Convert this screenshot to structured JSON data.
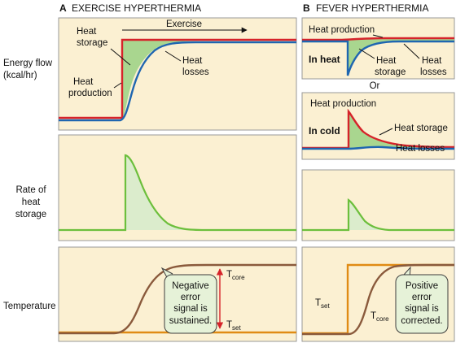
{
  "panel_a": {
    "letter": "A",
    "title": "EXERCISE HYPERTHERMIA"
  },
  "panel_b": {
    "letter": "B",
    "title": "FEVER HYPERTHERMIA"
  },
  "row_labels": {
    "energy_flow_line1": "Energy flow",
    "energy_flow_line2": "(kcal/hr)",
    "rate_line1": "Rate of",
    "rate_line2": "heat",
    "rate_line3": "storage",
    "temperature": "Temperature"
  },
  "a_energy": {
    "exercise": "Exercise",
    "heat_storage_1": "Heat",
    "heat_storage_2": "storage",
    "heat_losses_1": "Heat",
    "heat_losses_2": "losses",
    "heat_production_1": "Heat",
    "heat_production_2": "production"
  },
  "a_temp": {
    "t_core_main": "T",
    "t_core_sub": "core",
    "t_set_main": "T",
    "t_set_sub": "set",
    "callout_1": "Negative",
    "callout_2": "error",
    "callout_3": "signal is",
    "callout_4": "sustained."
  },
  "b_heat": {
    "heat_production": "Heat production",
    "condition": "In heat",
    "heat_storage_1": "Heat",
    "heat_storage_2": "storage",
    "heat_losses_1": "Heat",
    "heat_losses_2": "losses"
  },
  "b_or": "Or",
  "b_cold": {
    "heat_production": "Heat production",
    "condition": "In cold",
    "heat_storage": "Heat storage",
    "heat_losses": "Heat losses"
  },
  "b_temp": {
    "t_set_main": "T",
    "t_set_sub": "set",
    "t_core_main": "T",
    "t_core_sub": "core",
    "callout_1": "Positive",
    "callout_2": "error",
    "callout_3": "signal is",
    "callout_4": "corrected."
  },
  "colors": {
    "panel_bg": "#fbf0d2",
    "panel_border": "#9a9a9a",
    "heat_production": "#d6232a",
    "heat_losses": "#1f66b0",
    "heat_storage_line": "#6cbf3c",
    "heat_storage_fill": "#a9d68f",
    "storage_rate_fill": "#dbeccc",
    "t_core": "#8a5a3c",
    "t_set": "#e08b14",
    "callout_bg": "#e6f2d8",
    "callout_border": "#3d3d3d",
    "arrow": "#d6232a"
  }
}
